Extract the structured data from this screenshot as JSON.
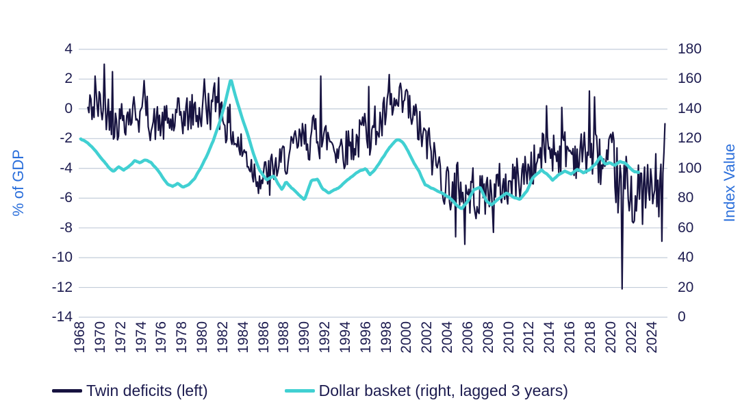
{
  "chart_data": {
    "type": "line",
    "title": "",
    "legend_position": "bottom",
    "grid": true,
    "gridline_color": "#c2ccd9",
    "text_color": "#1c1b4f",
    "axis_title_color": "#2b6fdb",
    "left_axis": {
      "label": "% of GDP",
      "min": -14,
      "max": 4,
      "ticks": [
        4,
        2,
        0,
        -2,
        -4,
        -6,
        -8,
        -10,
        -12,
        -14
      ]
    },
    "right_axis": {
      "label": "Index Value",
      "min": 0,
      "max": 180,
      "ticks": [
        180,
        160,
        140,
        120,
        100,
        80,
        60,
        40,
        20,
        0
      ]
    },
    "x_axis": {
      "tick_years": [
        1968,
        1970,
        1972,
        1974,
        1976,
        1978,
        1980,
        1982,
        1984,
        1986,
        1988,
        1990,
        1992,
        1994,
        1996,
        1998,
        2000,
        2002,
        2004,
        2006,
        2008,
        2010,
        2012,
        2014,
        2016,
        2018,
        2020,
        2022,
        2024
      ],
      "range": [
        1968.0,
        2025.5
      ]
    },
    "series": [
      {
        "name": "Twin deficits (left)",
        "axis": "left",
        "color": "#171340",
        "stroke_width": 2.2,
        "t_start": 1968.7,
        "t_end": 2025.2,
        "step_years": 0.1,
        "noise_seed": 42,
        "trend_anchors": [
          [
            1968.7,
            -0.2
          ],
          [
            1969.5,
            0.1
          ],
          [
            1970.5,
            -0.1
          ],
          [
            1971.5,
            -0.4
          ],
          [
            1972.5,
            0.0
          ],
          [
            1973.5,
            0.1
          ],
          [
            1974.5,
            -0.5
          ],
          [
            1975.5,
            -1.0
          ],
          [
            1976.5,
            -1.2
          ],
          [
            1977.5,
            -1.0
          ],
          [
            1978.5,
            -0.6
          ],
          [
            1979.5,
            -0.2
          ],
          [
            1980.5,
            0.1
          ],
          [
            1981.3,
            0.3
          ],
          [
            1982.0,
            -0.2
          ],
          [
            1983.0,
            -1.6
          ],
          [
            1984.0,
            -3.0
          ],
          [
            1985.0,
            -3.8
          ],
          [
            1986.0,
            -4.3
          ],
          [
            1987.0,
            -4.2
          ],
          [
            1988.0,
            -3.6
          ],
          [
            1989.0,
            -3.0
          ],
          [
            1990.0,
            -2.4
          ],
          [
            1991.0,
            -1.6
          ],
          [
            1992.0,
            -2.0
          ],
          [
            1993.0,
            -2.3
          ],
          [
            1994.0,
            -2.1
          ],
          [
            1995.0,
            -1.8
          ],
          [
            1996.0,
            -1.5
          ],
          [
            1997.0,
            -1.0
          ],
          [
            1998.0,
            -0.6
          ],
          [
            1999.0,
            -0.4
          ],
          [
            2000.0,
            -0.7
          ],
          [
            2001.0,
            -1.6
          ],
          [
            2002.0,
            -3.0
          ],
          [
            2003.0,
            -4.2
          ],
          [
            2004.0,
            -4.8
          ],
          [
            2005.0,
            -5.3
          ],
          [
            2006.0,
            -5.6
          ],
          [
            2007.0,
            -5.4
          ],
          [
            2008.0,
            -5.6
          ],
          [
            2009.0,
            -5.4
          ],
          [
            2010.0,
            -5.0
          ],
          [
            2011.0,
            -4.6
          ],
          [
            2012.0,
            -3.9
          ],
          [
            2013.0,
            -3.1
          ],
          [
            2014.0,
            -2.6
          ],
          [
            2015.0,
            -2.5
          ],
          [
            2016.0,
            -2.9
          ],
          [
            2017.0,
            -2.9
          ],
          [
            2018.0,
            -3.1
          ],
          [
            2019.0,
            -3.8
          ],
          [
            2020.0,
            -5.2
          ],
          [
            2021.0,
            -6.2
          ],
          [
            2022.0,
            -5.6
          ],
          [
            2023.0,
            -5.9
          ],
          [
            2024.0,
            -6.1
          ],
          [
            2025.2,
            -4.8
          ]
        ],
        "noise_amplitude_anchors": [
          [
            1968.7,
            1.4
          ],
          [
            1975.0,
            1.3
          ],
          [
            1982.0,
            1.5
          ],
          [
            1987.0,
            1.1
          ],
          [
            1991.0,
            1.4
          ],
          [
            1999.0,
            1.5
          ],
          [
            2005.0,
            1.7
          ],
          [
            2012.0,
            1.5
          ],
          [
            2018.0,
            1.6
          ],
          [
            2020.5,
            2.3
          ],
          [
            2025.2,
            2.4
          ]
        ],
        "spikes": [
          [
            1969.4,
            2.2
          ],
          [
            1970.3,
            3.0
          ],
          [
            1971.1,
            2.5
          ],
          [
            1974.2,
            1.9
          ],
          [
            1980.1,
            2.0
          ],
          [
            1981.5,
            2.1
          ],
          [
            1986.5,
            -5.8
          ],
          [
            1991.5,
            2.2
          ],
          [
            1996.2,
            1.5
          ],
          [
            1998.2,
            2.3
          ],
          [
            1999.9,
            1.3
          ],
          [
            2004.7,
            -8.6
          ],
          [
            2005.6,
            -9.1
          ],
          [
            2008.4,
            -8.3
          ],
          [
            2013.6,
            0.2
          ],
          [
            2015.1,
            0.1
          ],
          [
            2017.8,
            1.2
          ],
          [
            2018.3,
            0.8
          ],
          [
            2021.0,
            -12.1
          ],
          [
            2024.9,
            -8.9
          ],
          [
            2025.2,
            -1.0
          ]
        ]
      },
      {
        "name": "Dollar basket (right, lagged 3 years)",
        "axis": "right",
        "color": "#41d0d2",
        "stroke_width": 4.5,
        "step_years": 0.12,
        "jitter": 0.7,
        "noise_seed": 7,
        "anchors": [
          [
            1968.0,
            120
          ],
          [
            1968.7,
            117
          ],
          [
            1969.3,
            113
          ],
          [
            1970.0,
            107
          ],
          [
            1970.7,
            101
          ],
          [
            1971.2,
            98
          ],
          [
            1971.7,
            101
          ],
          [
            1972.2,
            98.5
          ],
          [
            1972.8,
            102
          ],
          [
            1973.3,
            105.5
          ],
          [
            1973.8,
            103.5
          ],
          [
            1974.3,
            106
          ],
          [
            1974.9,
            104
          ],
          [
            1975.5,
            99
          ],
          [
            1976.0,
            94
          ],
          [
            1976.5,
            89
          ],
          [
            1977.0,
            87.5
          ],
          [
            1977.5,
            90
          ],
          [
            1978.0,
            87
          ],
          [
            1978.6,
            89
          ],
          [
            1979.2,
            94
          ],
          [
            1979.8,
            101
          ],
          [
            1980.4,
            109
          ],
          [
            1981.0,
            119
          ],
          [
            1981.6,
            131
          ],
          [
            1982.1,
            143
          ],
          [
            1982.7,
            160
          ],
          [
            1983.2,
            147
          ],
          [
            1983.8,
            134
          ],
          [
            1984.4,
            122
          ],
          [
            1985.0,
            108
          ],
          [
            1985.5,
            99
          ],
          [
            1986.2,
            92
          ],
          [
            1986.9,
            95
          ],
          [
            1987.3,
            90
          ],
          [
            1987.7,
            85.5
          ],
          [
            1988.1,
            91
          ],
          [
            1988.6,
            87
          ],
          [
            1989.1,
            84
          ],
          [
            1989.9,
            78.5
          ],
          [
            1990.6,
            92
          ],
          [
            1991.2,
            92.5
          ],
          [
            1991.7,
            86
          ],
          [
            1992.3,
            83.5
          ],
          [
            1993.2,
            86.5
          ],
          [
            1994.1,
            92
          ],
          [
            1995.0,
            97
          ],
          [
            1995.9,
            100
          ],
          [
            1996.3,
            95.5
          ],
          [
            1996.8,
            99
          ],
          [
            1997.4,
            105
          ],
          [
            1998.1,
            113
          ],
          [
            1998.6,
            117
          ],
          [
            1999.0,
            119.5
          ],
          [
            1999.5,
            118
          ],
          [
            2000.1,
            111
          ],
          [
            2000.6,
            104
          ],
          [
            2001.2,
            97
          ],
          [
            2001.7,
            89
          ],
          [
            2002.3,
            87
          ],
          [
            2002.9,
            85
          ],
          [
            2003.5,
            83
          ],
          [
            2004.2,
            80
          ],
          [
            2004.8,
            75
          ],
          [
            2005.3,
            73
          ],
          [
            2005.9,
            78
          ],
          [
            2006.5,
            86
          ],
          [
            2007.1,
            87
          ],
          [
            2007.7,
            78
          ],
          [
            2008.2,
            75.5
          ],
          [
            2009.0,
            80
          ],
          [
            2009.7,
            83.5
          ],
          [
            2010.4,
            80.5
          ],
          [
            2011.0,
            79
          ],
          [
            2011.7,
            85
          ],
          [
            2012.2,
            93
          ],
          [
            2012.7,
            96.5
          ],
          [
            2013.1,
            99
          ],
          [
            2013.7,
            96
          ],
          [
            2014.2,
            92
          ],
          [
            2014.8,
            96
          ],
          [
            2015.4,
            98
          ],
          [
            2016.0,
            96
          ],
          [
            2016.6,
            99
          ],
          [
            2017.2,
            97
          ],
          [
            2017.8,
            99
          ],
          [
            2018.4,
            103
          ],
          [
            2018.9,
            108
          ],
          [
            2019.3,
            103
          ],
          [
            2019.8,
            104
          ],
          [
            2020.3,
            102
          ],
          [
            2020.8,
            104.5
          ],
          [
            2021.3,
            103.5
          ],
          [
            2021.8,
            100
          ],
          [
            2022.2,
            98
          ],
          [
            2022.6,
            97.5
          ]
        ]
      }
    ]
  },
  "legend": {
    "items": [
      {
        "label": "Twin deficits (left)",
        "color": "#171340"
      },
      {
        "label": "Dollar basket (right, lagged 3 years)",
        "color": "#41d0d2"
      }
    ]
  }
}
